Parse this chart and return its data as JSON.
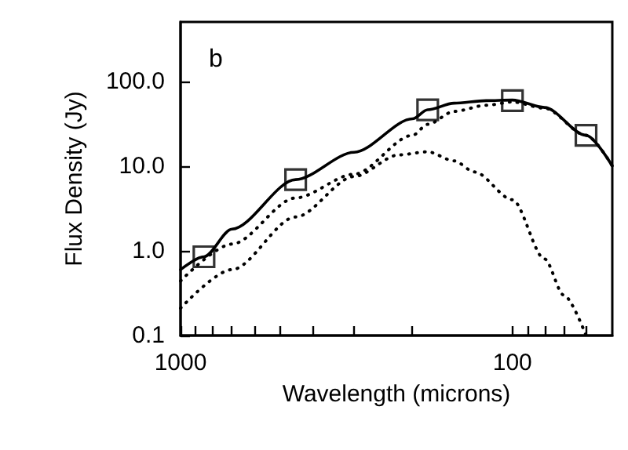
{
  "chart_data": {
    "type": "line",
    "xlabel": "Wavelength (microns)",
    "ylabel": "Flux Density (Jy)",
    "annotations": [
      "b"
    ],
    "log": "xy",
    "grid": false,
    "xlim": [
      1000,
      50
    ],
    "xticks": [
      {
        "value": 1000,
        "label": "1000"
      },
      {
        "value": 900,
        "label": null
      },
      {
        "value": 800,
        "label": null
      },
      {
        "value": 700,
        "label": null
      },
      {
        "value": 600,
        "label": null
      },
      {
        "value": 500,
        "label": null
      },
      {
        "value": 400,
        "label": null
      },
      {
        "value": 300,
        "label": null
      },
      {
        "value": 200,
        "label": null
      },
      {
        "value": 100,
        "label": "100"
      },
      {
        "value": 90,
        "label": null
      },
      {
        "value": 80,
        "label": null
      },
      {
        "value": 70,
        "label": null
      },
      {
        "value": 60,
        "label": null
      }
    ],
    "ylim": [
      0.1,
      500
    ],
    "yticks": [
      {
        "value": 0.1,
        "label": "0.1"
      },
      {
        "value": 1,
        "label": "1.0"
      },
      {
        "value": 10,
        "label": "10.0"
      },
      {
        "value": 100,
        "label": "100.0"
      }
    ],
    "series": [
      {
        "type": "scatter",
        "marker": "square",
        "color": "#000000",
        "x": [
          850,
          450,
          180,
          100,
          60
        ],
        "values": [
          0.85,
          6.9,
          46,
          59,
          23
        ]
      },
      {
        "marker": "none",
        "line_style": "solid",
        "color": "#000000",
        "x": [
          1000,
          850,
          700,
          450,
          300,
          200,
          180,
          150,
          120,
          100,
          80,
          60,
          50
        ],
        "values": [
          0.6,
          0.85,
          1.8,
          6.9,
          14.5,
          36,
          46,
          55,
          59,
          60,
          49,
          23,
          10
        ]
      },
      {
        "marker": "none",
        "line_style": "dotted",
        "color": "#000000",
        "x": [
          1000,
          700,
          450,
          300,
          200,
          180,
          150,
          120,
          100,
          80,
          60,
          50
        ],
        "values": [
          0.44,
          1.2,
          4.2,
          8,
          23,
          31,
          44,
          52,
          57,
          48,
          23,
          10
        ]
      },
      {
        "marker": "none",
        "line_style": "dotted",
        "color": "#000000",
        "x": [
          1000,
          700,
          450,
          300,
          220,
          180,
          150,
          130,
          100,
          80,
          70,
          60
        ],
        "values": [
          0.21,
          0.6,
          2.5,
          7.5,
          13.5,
          14.7,
          11.5,
          8.5,
          4.0,
          0.8,
          0.3,
          0.1
        ]
      }
    ]
  }
}
